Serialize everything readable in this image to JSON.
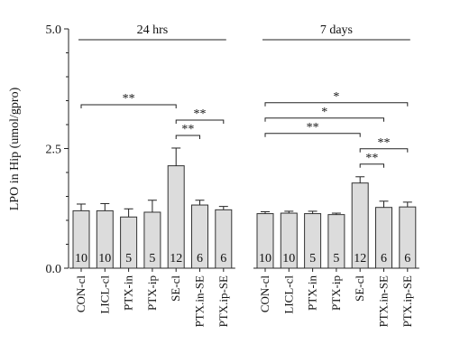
{
  "chart_data": {
    "type": "bar",
    "ylabel": "LPO in Hip (umol/gpro)",
    "ylim": [
      0,
      5.0
    ],
    "yticks": [
      "0.0",
      "2.5",
      "5.0"
    ],
    "colors": {
      "bar_fill": "#dcdcdc",
      "bar_stroke": "#333333"
    },
    "groups": [
      {
        "label": "24 hrs",
        "categories": [
          "CON-cl",
          "LICL-cl",
          "PTX-in",
          "PTX-ip",
          "SE-cl",
          "PTX.in-SE",
          "PTX.ip-SE"
        ],
        "values": [
          1.2,
          1.2,
          1.07,
          1.17,
          2.14,
          1.32,
          1.22
        ],
        "errors": [
          0.14,
          0.15,
          0.17,
          0.25,
          0.37,
          0.1,
          0.07
        ],
        "n": [
          "10",
          "10",
          "5",
          "5",
          "12",
          "6",
          "6"
        ],
        "significance": [
          {
            "from": "CON-cl",
            "to": "SE-cl",
            "label": "**"
          },
          {
            "from": "SE-cl",
            "to": "PTX.in-SE",
            "label": "**"
          },
          {
            "from": "SE-cl",
            "to": "PTX.ip-SE",
            "label": "**"
          }
        ]
      },
      {
        "label": "7 days",
        "categories": [
          "CON-cl",
          "LICL-cl",
          "PTX-in",
          "PTX-ip",
          "SE-cl",
          "PTX.in-SE",
          "PTX.ip-SE"
        ],
        "values": [
          1.14,
          1.15,
          1.14,
          1.12,
          1.78,
          1.27,
          1.28
        ],
        "errors": [
          0.04,
          0.04,
          0.05,
          0.03,
          0.13,
          0.13,
          0.1
        ],
        "n": [
          "10",
          "10",
          "5",
          "5",
          "12",
          "6",
          "6"
        ],
        "significance": [
          {
            "from": "CON-cl",
            "to": "PTX.ip-SE",
            "label": "*"
          },
          {
            "from": "CON-cl",
            "to": "PTX.in-SE",
            "label": "*"
          },
          {
            "from": "CON-cl",
            "to": "SE-cl",
            "label": "**"
          },
          {
            "from": "SE-cl",
            "to": "PTX.ip-SE",
            "label": "**"
          },
          {
            "from": "SE-cl",
            "to": "PTX.in-SE",
            "label": "**"
          }
        ]
      }
    ]
  }
}
